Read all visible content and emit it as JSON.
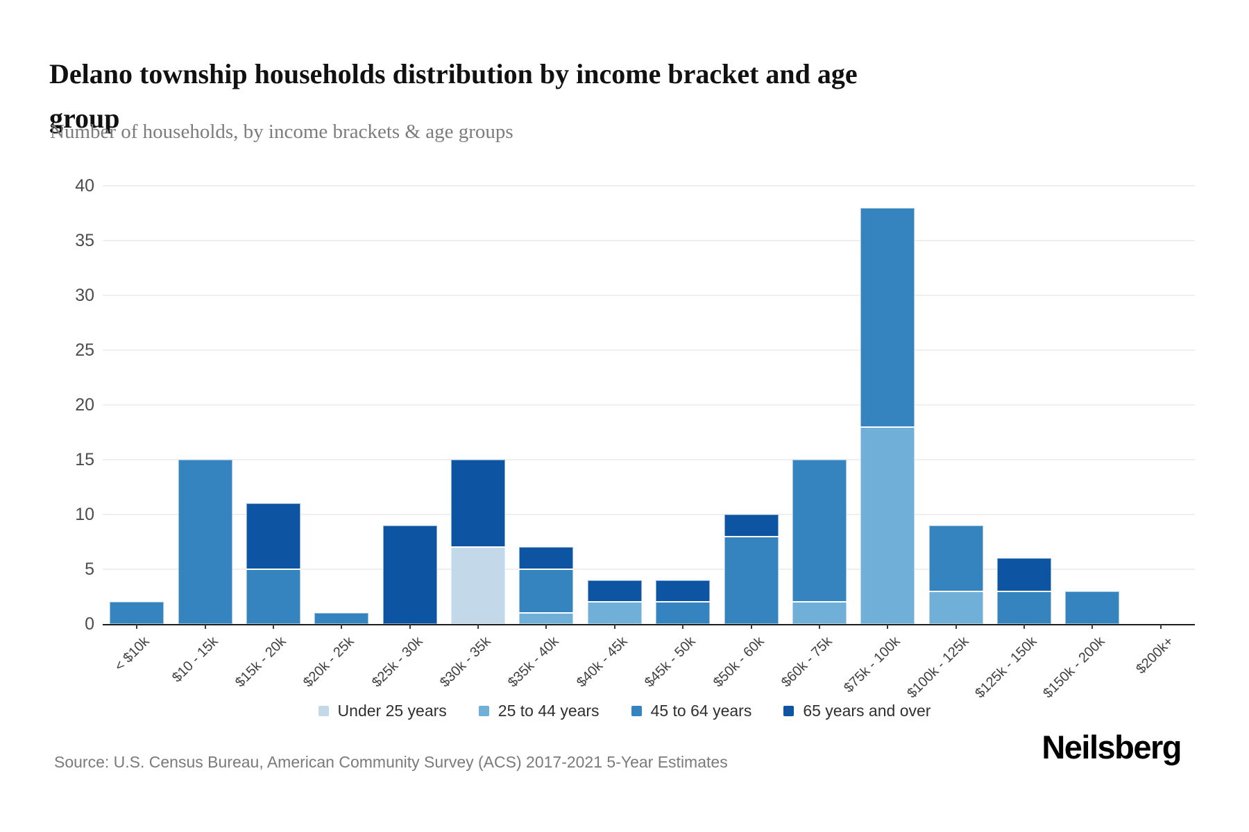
{
  "header": {
    "title_line1": "Delano township households distribution by income bracket and age",
    "title_line2": "group",
    "subtitle": "Number of households, by income brackets & age groups"
  },
  "footer": {
    "source": "Source: U.S. Census Bureau, American Community Survey (ACS) 2017-2021 5-Year Estimates",
    "brand": "Neilsberg"
  },
  "colors": {
    "under_25": "#c3d9ea",
    "age_25_44": "#6fafd8",
    "age_45_64": "#3583bf",
    "age_65_over": "#0d55a3",
    "gridline": "#efefef",
    "axis": "#1c1c1c",
    "background": "#ffffff"
  },
  "chart_data": {
    "type": "bar",
    "stacked": true,
    "title": "Delano township households distribution by income bracket and age group",
    "subtitle": "Number of households, by income brackets & age groups",
    "xlabel": "",
    "ylabel": "Number of households",
    "ylim": [
      0,
      40
    ],
    "yticks": [
      0,
      5,
      10,
      15,
      20,
      25,
      30,
      35,
      40
    ],
    "grid": "horizontal",
    "legend_position": "bottom",
    "categories": [
      "< $10k",
      "$10 - 15k",
      "$15k - 20k",
      "$20k - 25k",
      "$25k - 30k",
      "$30k - 35k",
      "$35k - 40k",
      "$40k - 45k",
      "$45k - 50k",
      "$50k - 60k",
      "$60k - 75k",
      "$75k - 100k",
      "$100k - 125k",
      "$125k - 150k",
      "$150k - 200k",
      "$200k+"
    ],
    "series": [
      {
        "name": "Under 25 years",
        "color": "#c3d9ea",
        "values": [
          0,
          0,
          0,
          0,
          0,
          7,
          0,
          0,
          0,
          0,
          0,
          0,
          0,
          0,
          0,
          0
        ]
      },
      {
        "name": "25 to 44 years",
        "color": "#6fafd8",
        "values": [
          0,
          0,
          0,
          0,
          0,
          0,
          1,
          2,
          0,
          0,
          2,
          18,
          3,
          0,
          0,
          0
        ]
      },
      {
        "name": "45 to 64 years",
        "color": "#3583bf",
        "values": [
          2,
          15,
          5,
          1,
          0,
          0,
          4,
          0,
          2,
          8,
          13,
          20,
          6,
          3,
          3,
          0
        ]
      },
      {
        "name": "65 years and over",
        "color": "#0d55a3",
        "values": [
          0,
          0,
          6,
          0,
          9,
          8,
          2,
          2,
          2,
          2,
          0,
          0,
          0,
          3,
          0,
          0
        ]
      }
    ],
    "totals": [
      2,
      15,
      11,
      1,
      9,
      15,
      7,
      4,
      4,
      10,
      15,
      38,
      9,
      6,
      3,
      0
    ]
  }
}
